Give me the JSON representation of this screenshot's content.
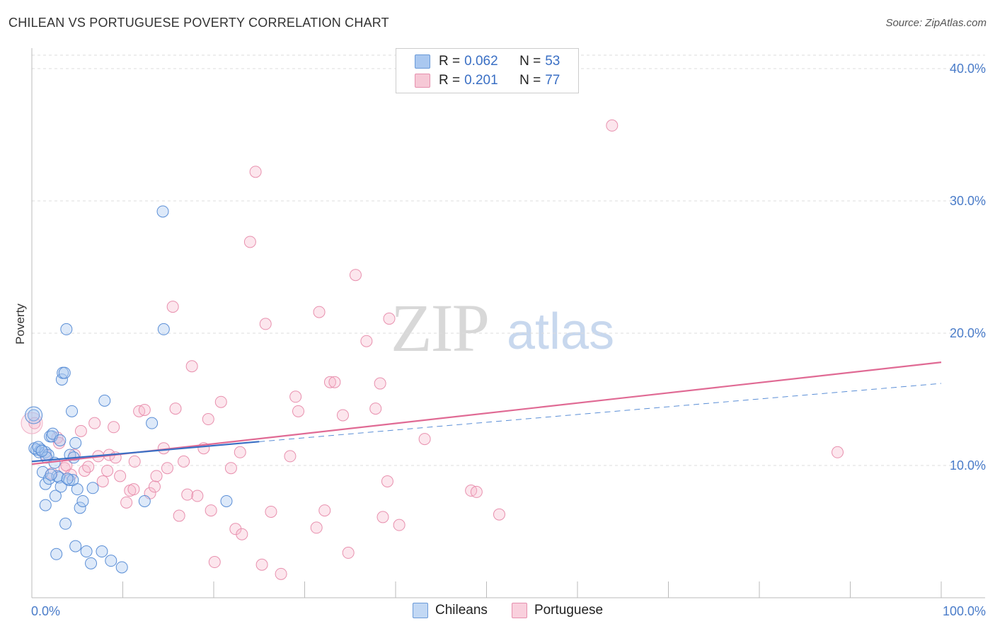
{
  "header": {
    "title": "CHILEAN VS PORTUGUESE POVERTY CORRELATION CHART",
    "source": "Source: ZipAtlas.com"
  },
  "watermark": {
    "zip": "ZIP",
    "atlas": "atlas"
  },
  "legend": {
    "rows": [
      {
        "r_label": "R = ",
        "r_value": "0.062",
        "n_label": "N = ",
        "n_value": "53",
        "color": "#aac8f0"
      },
      {
        "r_label": "R = ",
        "r_value": "0.201",
        "n_label": "N = ",
        "n_value": "77",
        "color": "#f6b8cc"
      }
    ]
  },
  "bottom_legend": {
    "items": [
      {
        "label": "Chileans",
        "color": "#aac8f0"
      },
      {
        "label": "Portuguese",
        "color": "#f6b8cc"
      }
    ]
  },
  "chart_data": {
    "type": "scatter",
    "ylabel": "Poverty",
    "xlim": [
      0,
      100
    ],
    "ylim": [
      0,
      40
    ],
    "x_tick_labels": [
      {
        "x": 0,
        "label": "0.0%"
      },
      {
        "x": 100,
        "label": "100.0%"
      }
    ],
    "y_tick_labels": [
      {
        "y": 10,
        "label": "10.0%"
      },
      {
        "y": 20,
        "label": "20.0%"
      },
      {
        "y": 30,
        "label": "30.0%"
      },
      {
        "y": 40,
        "label": "40.0%"
      }
    ],
    "grid": true,
    "colors": {
      "chileans": "#4a86d8",
      "portuguese": "#e06a94"
    },
    "series": [
      {
        "name": "Chileans",
        "trend": {
          "x0": 0,
          "y0": 10.3,
          "x1": 25,
          "y1": 11.8,
          "dashed_x1": 100,
          "dashed_y1": 16.2
        },
        "points": [
          [
            0.2,
            13.8
          ],
          [
            0.5,
            11.2
          ],
          [
            0.8,
            11.0
          ],
          [
            1.0,
            11.2
          ],
          [
            1.2,
            9.5
          ],
          [
            1.5,
            11.0
          ],
          [
            1.8,
            10.8
          ],
          [
            1.5,
            8.6
          ],
          [
            1.5,
            7.0
          ],
          [
            1.6,
            10.6
          ],
          [
            1.9,
            9.0
          ],
          [
            2.0,
            12.2
          ],
          [
            2.2,
            12.2
          ],
          [
            2.3,
            12.4
          ],
          [
            2.5,
            10.2
          ],
          [
            2.6,
            7.7
          ],
          [
            2.7,
            3.3
          ],
          [
            2.8,
            9.2
          ],
          [
            3.0,
            9.1
          ],
          [
            3.1,
            11.9
          ],
          [
            3.2,
            8.4
          ],
          [
            3.3,
            16.5
          ],
          [
            3.4,
            17.0
          ],
          [
            3.6,
            17.0
          ],
          [
            3.7,
            5.6
          ],
          [
            3.8,
            20.3
          ],
          [
            4.1,
            8.9
          ],
          [
            4.2,
            10.8
          ],
          [
            4.4,
            14.1
          ],
          [
            4.5,
            8.9
          ],
          [
            4.6,
            10.6
          ],
          [
            4.8,
            3.9
          ],
          [
            4.8,
            11.7
          ],
          [
            5.0,
            8.2
          ],
          [
            5.3,
            6.8
          ],
          [
            5.6,
            7.3
          ],
          [
            6.0,
            3.5
          ],
          [
            6.5,
            2.6
          ],
          [
            6.7,
            8.3
          ],
          [
            7.7,
            3.5
          ],
          [
            8.0,
            14.9
          ],
          [
            8.7,
            2.8
          ],
          [
            9.9,
            2.3
          ],
          [
            12.4,
            7.3
          ],
          [
            13.2,
            13.2
          ],
          [
            14.4,
            29.2
          ],
          [
            14.5,
            20.3
          ],
          [
            21.4,
            7.3
          ],
          [
            0.3,
            11.3
          ],
          [
            0.7,
            11.4
          ],
          [
            1.1,
            11.1
          ],
          [
            2.1,
            9.3
          ],
          [
            3.9,
            9.0
          ]
        ]
      },
      {
        "name": "Portuguese",
        "trend": {
          "x0": 0,
          "y0": 10.1,
          "x1": 100,
          "y1": 17.8
        },
        "points": [
          [
            0.3,
            13.2
          ],
          [
            1.5,
            10.8
          ],
          [
            2.2,
            9.4
          ],
          [
            2.8,
            12.1
          ],
          [
            3.0,
            11.7
          ],
          [
            3.6,
            9.8
          ],
          [
            3.8,
            10.0
          ],
          [
            4.3,
            9.3
          ],
          [
            4.7,
            10.8
          ],
          [
            5.4,
            12.6
          ],
          [
            5.8,
            9.6
          ],
          [
            6.2,
            9.9
          ],
          [
            6.9,
            13.2
          ],
          [
            7.3,
            10.7
          ],
          [
            7.8,
            8.8
          ],
          [
            8.3,
            9.6
          ],
          [
            8.5,
            10.8
          ],
          [
            9.0,
            12.9
          ],
          [
            9.7,
            9.2
          ],
          [
            10.4,
            7.2
          ],
          [
            10.8,
            8.1
          ],
          [
            11.2,
            8.2
          ],
          [
            11.8,
            14.1
          ],
          [
            12.4,
            14.2
          ],
          [
            13.0,
            7.9
          ],
          [
            13.5,
            8.4
          ],
          [
            13.7,
            9.2
          ],
          [
            14.5,
            11.3
          ],
          [
            14.9,
            9.8
          ],
          [
            15.5,
            22.0
          ],
          [
            15.8,
            14.3
          ],
          [
            16.2,
            6.2
          ],
          [
            16.7,
            10.3
          ],
          [
            17.1,
            7.8
          ],
          [
            17.6,
            17.5
          ],
          [
            18.2,
            7.7
          ],
          [
            18.9,
            11.3
          ],
          [
            19.4,
            13.5
          ],
          [
            19.7,
            6.6
          ],
          [
            20.1,
            2.7
          ],
          [
            20.8,
            14.8
          ],
          [
            21.9,
            9.8
          ],
          [
            22.4,
            5.2
          ],
          [
            22.9,
            11.0
          ],
          [
            23.1,
            4.8
          ],
          [
            24.0,
            26.9
          ],
          [
            24.6,
            32.2
          ],
          [
            25.3,
            2.5
          ],
          [
            25.7,
            20.7
          ],
          [
            26.3,
            6.5
          ],
          [
            27.4,
            1.8
          ],
          [
            28.4,
            10.7
          ],
          [
            29.0,
            15.2
          ],
          [
            29.3,
            14.1
          ],
          [
            31.3,
            5.3
          ],
          [
            31.6,
            21.6
          ],
          [
            32.2,
            6.6
          ],
          [
            32.8,
            16.3
          ],
          [
            33.3,
            16.3
          ],
          [
            34.2,
            13.8
          ],
          [
            34.8,
            3.4
          ],
          [
            35.6,
            24.4
          ],
          [
            36.8,
            19.4
          ],
          [
            37.8,
            14.3
          ],
          [
            38.3,
            16.2
          ],
          [
            38.6,
            6.1
          ],
          [
            39.1,
            8.8
          ],
          [
            39.3,
            21.1
          ],
          [
            40.4,
            5.5
          ],
          [
            43.2,
            12.0
          ],
          [
            48.3,
            8.1
          ],
          [
            48.9,
            8.0
          ],
          [
            51.4,
            6.3
          ],
          [
            63.8,
            35.7
          ],
          [
            88.6,
            11.0
          ],
          [
            9.2,
            10.6
          ],
          [
            11.3,
            10.3
          ]
        ]
      }
    ]
  }
}
